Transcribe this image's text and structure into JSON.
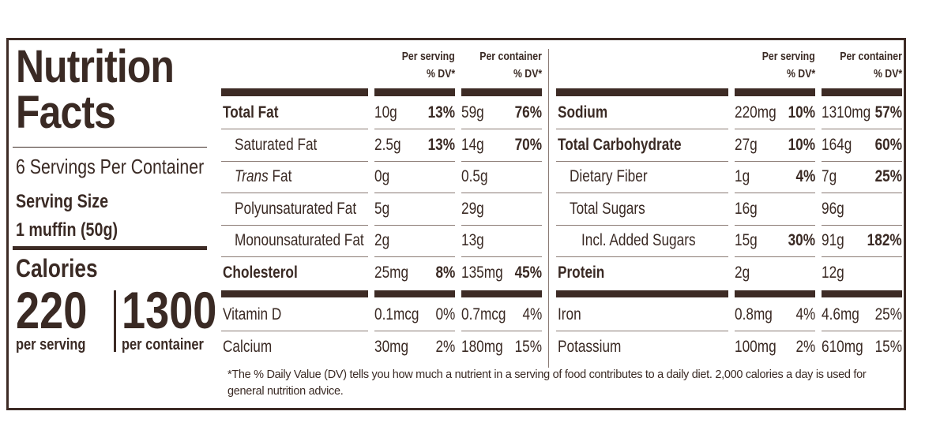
{
  "panel": {
    "title": "Nutrition Facts",
    "servings": "6 Servings Per Container",
    "serving_size_label": "Serving Size",
    "serving_size": "1 muffin (50g)",
    "calories_label": "Calories",
    "calories_per_serving": "220",
    "per_serving_label": "per serving",
    "calories_per_container": "1300",
    "per_container_label": "per container"
  },
  "tables": [
    {
      "header": {
        "per_serving": "Per serving",
        "per_container": "Per container",
        "dv_serving": "% DV*",
        "dv_container": "% DV*"
      },
      "rows": [
        {
          "name": "Total Fat",
          "ps_amount": "10g",
          "ps_dv": "13%",
          "pc_amount": "59g",
          "pc_dv": "76%"
        },
        {
          "name": "Saturated Fat",
          "ps_amount": "2.5g",
          "ps_dv": "13%",
          "pc_amount": "14g",
          "pc_dv": "70%"
        },
        {
          "name_prefix": "Trans",
          "name": "Fat",
          "ps_amount": "0g",
          "pc_amount": "0.5g"
        },
        {
          "name": "Polyunsaturated Fat",
          "ps_amount": "5g",
          "pc_amount": "29g"
        },
        {
          "name": "Monounsaturated Fat",
          "ps_amount": "2g",
          "pc_amount": "13g"
        },
        {
          "name": "Cholesterol",
          "ps_amount": "25mg",
          "ps_dv": "8%",
          "pc_amount": "135mg",
          "pc_dv": "45%"
        }
      ],
      "minerals": [
        {
          "name": "Vitamin D",
          "ps_amount": "0.1mcg",
          "ps_dv": "0%",
          "pc_amount": "0.7mcg",
          "pc_dv": "4%"
        },
        {
          "name": "Calcium",
          "ps_amount": "30mg",
          "ps_dv": "2%",
          "pc_amount": "180mg",
          "pc_dv": "15%"
        }
      ]
    },
    {
      "header": {
        "per_serving": "Per serving",
        "per_container": "Per container",
        "dv_serving": "% DV*",
        "dv_container": "% DV*"
      },
      "rows": [
        {
          "name": "Sodium",
          "ps_amount": "220mg",
          "ps_dv": "10%",
          "pc_amount": "1310mg",
          "pc_dv": "57%"
        },
        {
          "name": "Total Carbohydrate",
          "ps_amount": "27g",
          "ps_dv": "10%",
          "pc_amount": "164g",
          "pc_dv": "60%"
        },
        {
          "name": "Dietary Fiber",
          "ps_amount": "1g",
          "ps_dv": "4%",
          "pc_amount": "7g",
          "pc_dv": "25%"
        },
        {
          "name": "Total Sugars",
          "ps_amount": "16g",
          "pc_amount": "96g"
        },
        {
          "name": "Incl. Added Sugars",
          "ps_amount": "15g",
          "ps_dv": "30%",
          "pc_amount": "91g",
          "pc_dv": "182%"
        },
        {
          "name": "Protein",
          "ps_amount": "2g",
          "pc_amount": "12g"
        }
      ],
      "minerals": [
        {
          "name": "Iron",
          "ps_amount": "0.8mg",
          "ps_dv": "4%",
          "pc_amount": "4.6mg",
          "pc_dv": "25%"
        },
        {
          "name": "Potassium",
          "ps_amount": "100mg",
          "ps_dv": "2%",
          "pc_amount": "610mg",
          "pc_dv": "15%"
        }
      ]
    }
  ],
  "footnote": "*The % Daily Value (DV) tells you how much a nutrient in a serving of food contributes to a daily diet. 2,000 calories a day is used for general nutrition advice."
}
